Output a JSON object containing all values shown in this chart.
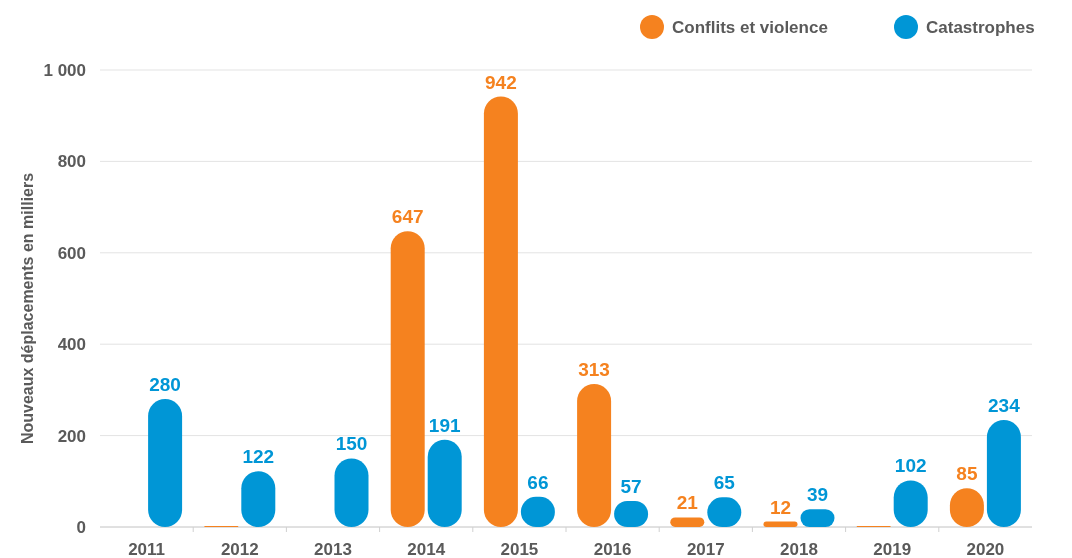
{
  "chart_data": {
    "type": "bar",
    "ylabel": "Nouveaux déplacements en milliers",
    "categories": [
      "2011",
      "2012",
      "2013",
      "2014",
      "2015",
      "2016",
      "2017",
      "2018",
      "2019",
      "2020"
    ],
    "series": [
      {
        "name": "Conflits et violence",
        "color": "#f5821f",
        "values": [
          null,
          1,
          null,
          647,
          942,
          313,
          21,
          12,
          2,
          85
        ],
        "value_labels": [
          null,
          null,
          null,
          "647",
          "942",
          "313",
          "21",
          "12",
          null,
          "85"
        ]
      },
      {
        "name": "Catastrophes",
        "color": "#0096d6",
        "values": [
          280,
          122,
          150,
          191,
          66,
          57,
          65,
          39,
          102,
          234
        ],
        "value_labels": [
          "280",
          "122",
          "150",
          "191",
          "66",
          "57",
          "65",
          "39",
          "102",
          "234"
        ]
      }
    ],
    "ylim": [
      0,
      1000
    ],
    "yticks": [
      0,
      200,
      400,
      600,
      800,
      {
        "value": 1000,
        "label": "1 000"
      }
    ],
    "grid": "y",
    "legend": "top right"
  }
}
